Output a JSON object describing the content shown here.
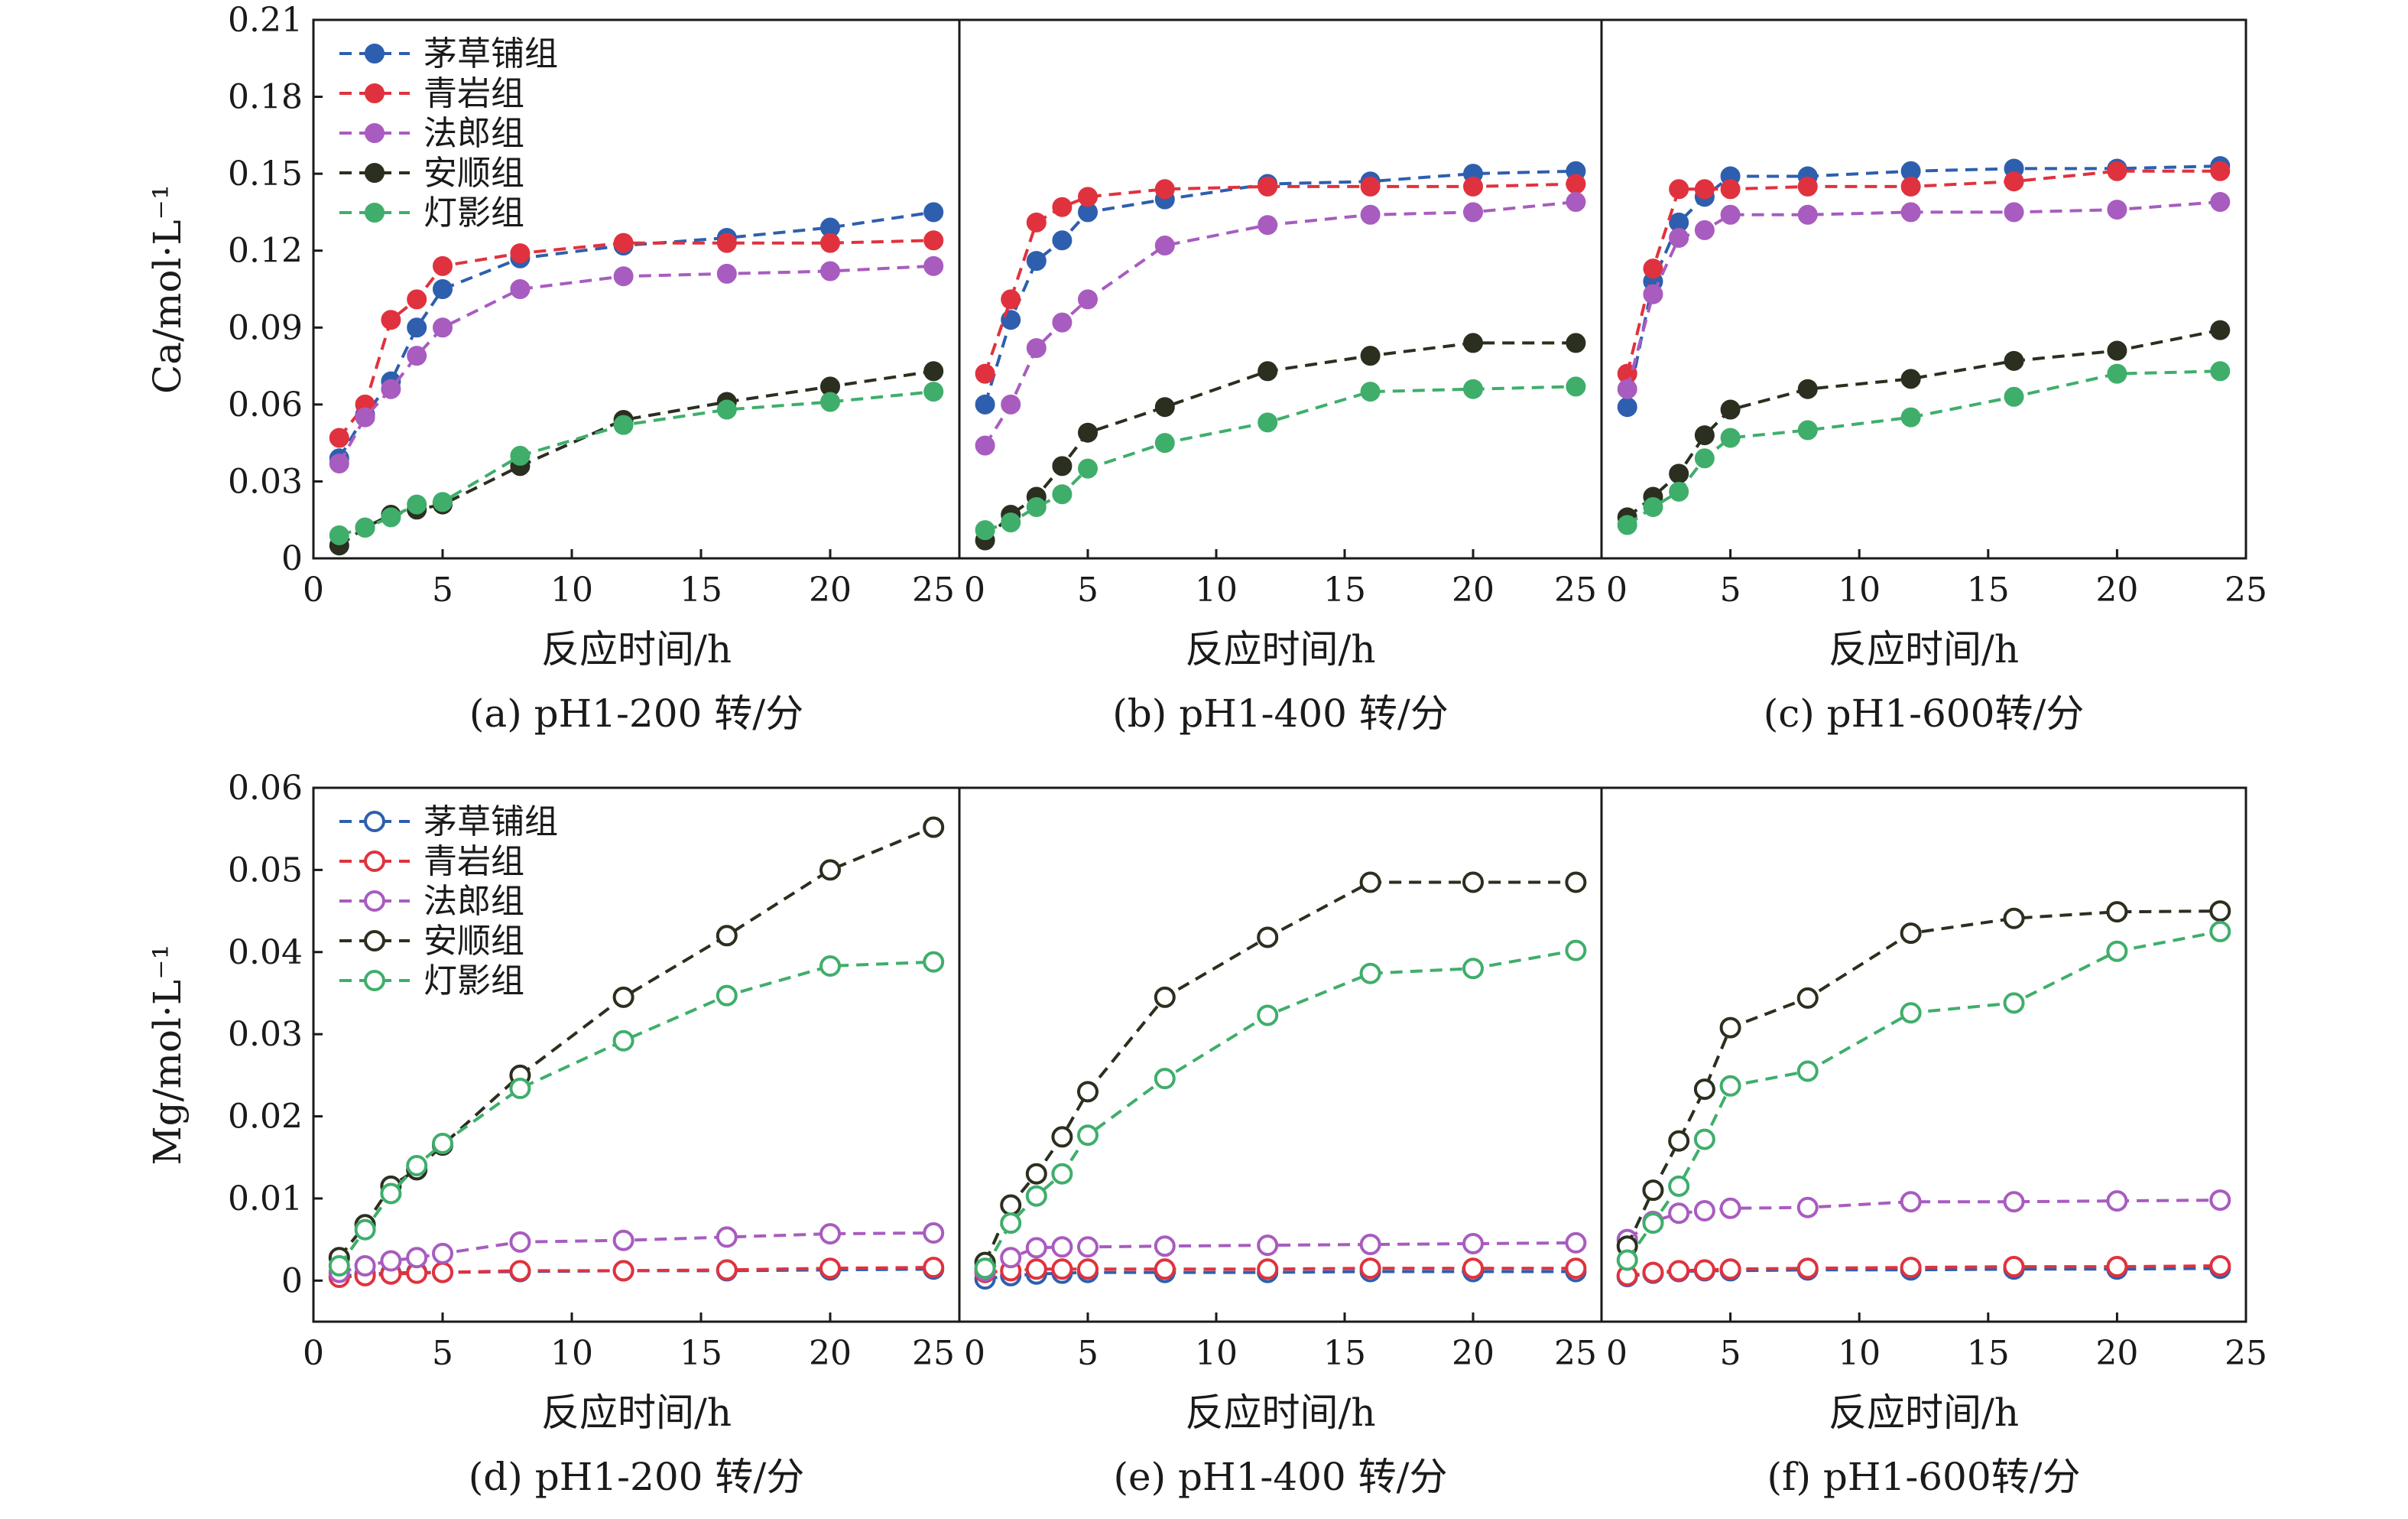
{
  "series_names": [
    "茅草铺组",
    "青岩组",
    "法郎组",
    "安顺组",
    "灯影组"
  ],
  "colors": {
    "茅草铺组": "#2e5fae",
    "青岩组": "#e0323e",
    "法郎组": "#a85cbf",
    "安顺组": "#2b2f1f",
    "灯影组": "#3fae6b"
  },
  "rows": [
    {
      "ylabel": "Ca/mol·L⁻¹",
      "yticks": [
        "0",
        "0.03",
        "0.06",
        "0.09",
        "0.12",
        "0.15",
        "0.18",
        "0.21"
      ],
      "ylim": [
        0,
        0.21
      ],
      "marker": "filled"
    },
    {
      "ylabel": "Mg/mol·L⁻¹",
      "yticks": [
        "0",
        "0.01",
        "0.02",
        "0.03",
        "0.04",
        "0.05",
        "0.06"
      ],
      "ylim": [
        -0.005,
        0.06
      ],
      "marker": "open"
    }
  ],
  "xlabel": "反应时间/h",
  "xticks": [
    "0",
    "5",
    "10",
    "15",
    "20",
    "25"
  ],
  "xlim": [
    0,
    25
  ],
  "chart_data": [
    {
      "type": "line",
      "caption": "(a) pH1-200 转/分",
      "xlabel": "反应时间/h",
      "ylabel": "Ca/mol·L⁻¹",
      "xlim": [
        0,
        25
      ],
      "ylim": [
        0,
        0.21
      ],
      "legend": "top-left",
      "line_style": "dashed",
      "marker": "filled-circle",
      "series": [
        {
          "name": "茅草铺组",
          "x": [
            1,
            2,
            3,
            4,
            5,
            8,
            12,
            16,
            20,
            24
          ],
          "y": [
            0.039,
            0.056,
            0.069,
            0.09,
            0.105,
            0.117,
            0.122,
            0.125,
            0.129,
            0.135
          ]
        },
        {
          "name": "青岩组",
          "x": [
            1,
            2,
            3,
            4,
            5,
            8,
            12,
            16,
            20,
            24
          ],
          "y": [
            0.047,
            0.06,
            0.093,
            0.101,
            0.114,
            0.119,
            0.123,
            0.123,
            0.123,
            0.124
          ]
        },
        {
          "name": "法郎组",
          "x": [
            1,
            2,
            3,
            4,
            5,
            8,
            12,
            16,
            20,
            24
          ],
          "y": [
            0.037,
            0.055,
            0.066,
            0.079,
            0.09,
            0.105,
            0.11,
            0.111,
            0.112,
            0.114
          ]
        },
        {
          "name": "安顺组",
          "x": [
            1,
            2,
            3,
            4,
            5,
            8,
            12,
            16,
            20,
            24
          ],
          "y": [
            0.005,
            0.012,
            0.017,
            0.019,
            0.021,
            0.036,
            0.054,
            0.061,
            0.067,
            0.073
          ]
        },
        {
          "name": "灯影组",
          "x": [
            1,
            2,
            3,
            4,
            5,
            8,
            12,
            16,
            20,
            24
          ],
          "y": [
            0.009,
            0.012,
            0.016,
            0.021,
            0.022,
            0.04,
            0.052,
            0.058,
            0.061,
            0.065
          ]
        }
      ]
    },
    {
      "type": "line",
      "caption": "(b) pH1-400 转/分",
      "xlabel": "反应时间/h",
      "ylabel": "Ca/mol·L⁻¹",
      "xlim": [
        0,
        25
      ],
      "ylim": [
        0,
        0.21
      ],
      "line_style": "dashed",
      "marker": "filled-circle",
      "series": [
        {
          "name": "茅草铺组",
          "x": [
            1,
            2,
            3,
            4,
            5,
            8,
            12,
            16,
            20,
            24
          ],
          "y": [
            0.06,
            0.093,
            0.116,
            0.124,
            0.135,
            0.14,
            0.146,
            0.147,
            0.15,
            0.151
          ]
        },
        {
          "name": "青岩组",
          "x": [
            1,
            2,
            3,
            4,
            5,
            8,
            12,
            16,
            20,
            24
          ],
          "y": [
            0.072,
            0.101,
            0.131,
            0.137,
            0.141,
            0.144,
            0.145,
            0.145,
            0.145,
            0.146
          ]
        },
        {
          "name": "法郎组",
          "x": [
            1,
            2,
            3,
            4,
            5,
            8,
            12,
            16,
            20,
            24
          ],
          "y": [
            0.044,
            0.06,
            0.082,
            0.092,
            0.101,
            0.122,
            0.13,
            0.134,
            0.135,
            0.139
          ]
        },
        {
          "name": "安顺组",
          "x": [
            1,
            2,
            3,
            4,
            5,
            8,
            12,
            16,
            20,
            24
          ],
          "y": [
            0.007,
            0.017,
            0.024,
            0.036,
            0.049,
            0.059,
            0.073,
            0.079,
            0.084,
            0.084
          ]
        },
        {
          "name": "灯影组",
          "x": [
            1,
            2,
            3,
            4,
            5,
            8,
            12,
            16,
            20,
            24
          ],
          "y": [
            0.011,
            0.014,
            0.02,
            0.025,
            0.035,
            0.045,
            0.053,
            0.065,
            0.066,
            0.067
          ]
        }
      ]
    },
    {
      "type": "line",
      "caption": "(c) pH1-600转/分",
      "xlabel": "反应时间/h",
      "ylabel": "Ca/mol·L⁻¹",
      "xlim": [
        0,
        25
      ],
      "ylim": [
        0,
        0.21
      ],
      "line_style": "dashed",
      "marker": "filled-circle",
      "series": [
        {
          "name": "茅草铺组",
          "x": [
            1,
            2,
            3,
            4,
            5,
            8,
            12,
            16,
            20,
            24
          ],
          "y": [
            0.059,
            0.108,
            0.131,
            0.141,
            0.149,
            0.149,
            0.151,
            0.152,
            0.152,
            0.153
          ]
        },
        {
          "name": "青岩组",
          "x": [
            1,
            2,
            3,
            4,
            5,
            8,
            12,
            16,
            20,
            24
          ],
          "y": [
            0.072,
            0.113,
            0.144,
            0.144,
            0.144,
            0.145,
            0.145,
            0.147,
            0.151,
            0.151
          ]
        },
        {
          "name": "法郎组",
          "x": [
            1,
            2,
            3,
            4,
            5,
            8,
            12,
            16,
            20,
            24
          ],
          "y": [
            0.066,
            0.103,
            0.125,
            0.128,
            0.134,
            0.134,
            0.135,
            0.135,
            0.136,
            0.139
          ]
        },
        {
          "name": "安顺组",
          "x": [
            1,
            2,
            3,
            4,
            5,
            8,
            12,
            16,
            20,
            24
          ],
          "y": [
            0.016,
            0.024,
            0.033,
            0.048,
            0.058,
            0.066,
            0.07,
            0.077,
            0.081,
            0.089
          ]
        },
        {
          "name": "灯影组",
          "x": [
            1,
            2,
            3,
            4,
            5,
            8,
            12,
            16,
            20,
            24
          ],
          "y": [
            0.013,
            0.02,
            0.026,
            0.039,
            0.047,
            0.05,
            0.055,
            0.063,
            0.072,
            0.073
          ]
        }
      ]
    },
    {
      "type": "line",
      "caption": "(d) pH1-200 转/分",
      "xlabel": "反应时间/h",
      "ylabel": "Mg/mol·L⁻¹",
      "xlim": [
        0,
        25
      ],
      "ylim": [
        -0.005,
        0.06
      ],
      "legend": "top-left",
      "line_style": "dashed",
      "marker": "open-circle",
      "series": [
        {
          "name": "茅草铺组",
          "x": [
            1,
            2,
            3,
            4,
            5,
            8,
            12,
            16,
            20,
            24
          ],
          "y": [
            0.0005,
            0.0008,
            0.0009,
            0.001,
            0.001,
            0.0011,
            0.0012,
            0.0012,
            0.0013,
            0.0014
          ]
        },
        {
          "name": "青岩组",
          "x": [
            1,
            2,
            3,
            4,
            5,
            8,
            12,
            16,
            20,
            24
          ],
          "y": [
            0.0004,
            0.0006,
            0.0008,
            0.0009,
            0.001,
            0.0012,
            0.0012,
            0.0013,
            0.0015,
            0.0016
          ]
        },
        {
          "name": "法郎组",
          "x": [
            1,
            2,
            3,
            4,
            5,
            8,
            12,
            16,
            20,
            24
          ],
          "y": [
            0.001,
            0.0018,
            0.0024,
            0.0028,
            0.0033,
            0.0047,
            0.0049,
            0.0053,
            0.0057,
            0.0058
          ]
        },
        {
          "name": "安顺组",
          "x": [
            1,
            2,
            3,
            4,
            5,
            8,
            12,
            16,
            20,
            24
          ],
          "y": [
            0.0028,
            0.0068,
            0.0115,
            0.0135,
            0.0165,
            0.025,
            0.0345,
            0.042,
            0.05,
            0.0552
          ]
        },
        {
          "name": "灯影组",
          "x": [
            1,
            2,
            3,
            4,
            5,
            8,
            12,
            16,
            20,
            24
          ],
          "y": [
            0.0018,
            0.0062,
            0.0106,
            0.014,
            0.0167,
            0.0234,
            0.0292,
            0.0347,
            0.0383,
            0.0388
          ]
        }
      ]
    },
    {
      "type": "line",
      "caption": "(e) pH1-400 转/分",
      "xlabel": "反应时间/h",
      "ylabel": "Mg/mol·L⁻¹",
      "xlim": [
        0,
        25
      ],
      "ylim": [
        -0.005,
        0.06
      ],
      "line_style": "dashed",
      "marker": "open-circle",
      "series": [
        {
          "name": "茅草铺组",
          "x": [
            1,
            2,
            3,
            4,
            5,
            8,
            12,
            16,
            20,
            24
          ],
          "y": [
            0.0002,
            0.0006,
            0.0008,
            0.0009,
            0.001,
            0.001,
            0.001,
            0.0011,
            0.0011,
            0.0011
          ]
        },
        {
          "name": "青岩组",
          "x": [
            1,
            2,
            3,
            4,
            5,
            8,
            12,
            16,
            20,
            24
          ],
          "y": [
            0.001,
            0.0012,
            0.0014,
            0.0014,
            0.0014,
            0.0014,
            0.0014,
            0.0015,
            0.0015,
            0.0015
          ]
        },
        {
          "name": "法郎组",
          "x": [
            1,
            2,
            3,
            4,
            5,
            8,
            12,
            16,
            20,
            24
          ],
          "y": [
            0.0012,
            0.0028,
            0.004,
            0.0041,
            0.0041,
            0.0042,
            0.0043,
            0.0044,
            0.0045,
            0.0046
          ]
        },
        {
          "name": "安顺组",
          "x": [
            1,
            2,
            3,
            4,
            5,
            8,
            12,
            16,
            20,
            24
          ],
          "y": [
            0.0022,
            0.0092,
            0.013,
            0.0175,
            0.023,
            0.0345,
            0.0418,
            0.0485,
            0.0485,
            0.0485
          ]
        },
        {
          "name": "灯影组",
          "x": [
            1,
            2,
            3,
            4,
            5,
            8,
            12,
            16,
            20,
            24
          ],
          "y": [
            0.0015,
            0.007,
            0.0103,
            0.013,
            0.0177,
            0.0246,
            0.0323,
            0.0374,
            0.038,
            0.0402
          ]
        }
      ]
    },
    {
      "type": "line",
      "caption": "(f) pH1-600转/分",
      "xlabel": "反应时间/h",
      "ylabel": "Mg/mol·L⁻¹",
      "xlim": [
        0,
        25
      ],
      "ylim": [
        -0.005,
        0.06
      ],
      "line_style": "dashed",
      "marker": "open-circle",
      "series": [
        {
          "name": "茅草铺组",
          "x": [
            1,
            2,
            3,
            4,
            5,
            8,
            12,
            16,
            20,
            24
          ],
          "y": [
            0.0005,
            0.0009,
            0.0011,
            0.0012,
            0.0012,
            0.0013,
            0.0013,
            0.0014,
            0.0014,
            0.0015
          ]
        },
        {
          "name": "青岩组",
          "x": [
            1,
            2,
            3,
            4,
            5,
            8,
            12,
            16,
            20,
            24
          ],
          "y": [
            0.0006,
            0.001,
            0.0012,
            0.0013,
            0.0014,
            0.0015,
            0.0016,
            0.0017,
            0.0017,
            0.0018
          ]
        },
        {
          "name": "法郎组",
          "x": [
            1,
            2,
            3,
            4,
            5,
            8,
            12,
            16,
            20,
            24
          ],
          "y": [
            0.005,
            0.0072,
            0.0082,
            0.0085,
            0.0088,
            0.0089,
            0.0096,
            0.0096,
            0.0097,
            0.0098
          ]
        },
        {
          "name": "安顺组",
          "x": [
            1,
            2,
            3,
            4,
            5,
            8,
            12,
            16,
            20,
            24
          ],
          "y": [
            0.0042,
            0.011,
            0.017,
            0.0233,
            0.0308,
            0.0344,
            0.0423,
            0.0441,
            0.0449,
            0.045
          ]
        },
        {
          "name": "灯影组",
          "x": [
            1,
            2,
            3,
            4,
            5,
            8,
            12,
            16,
            20,
            24
          ],
          "y": [
            0.0025,
            0.007,
            0.0115,
            0.0172,
            0.0237,
            0.0255,
            0.0326,
            0.0338,
            0.0401,
            0.0425
          ]
        }
      ]
    }
  ]
}
